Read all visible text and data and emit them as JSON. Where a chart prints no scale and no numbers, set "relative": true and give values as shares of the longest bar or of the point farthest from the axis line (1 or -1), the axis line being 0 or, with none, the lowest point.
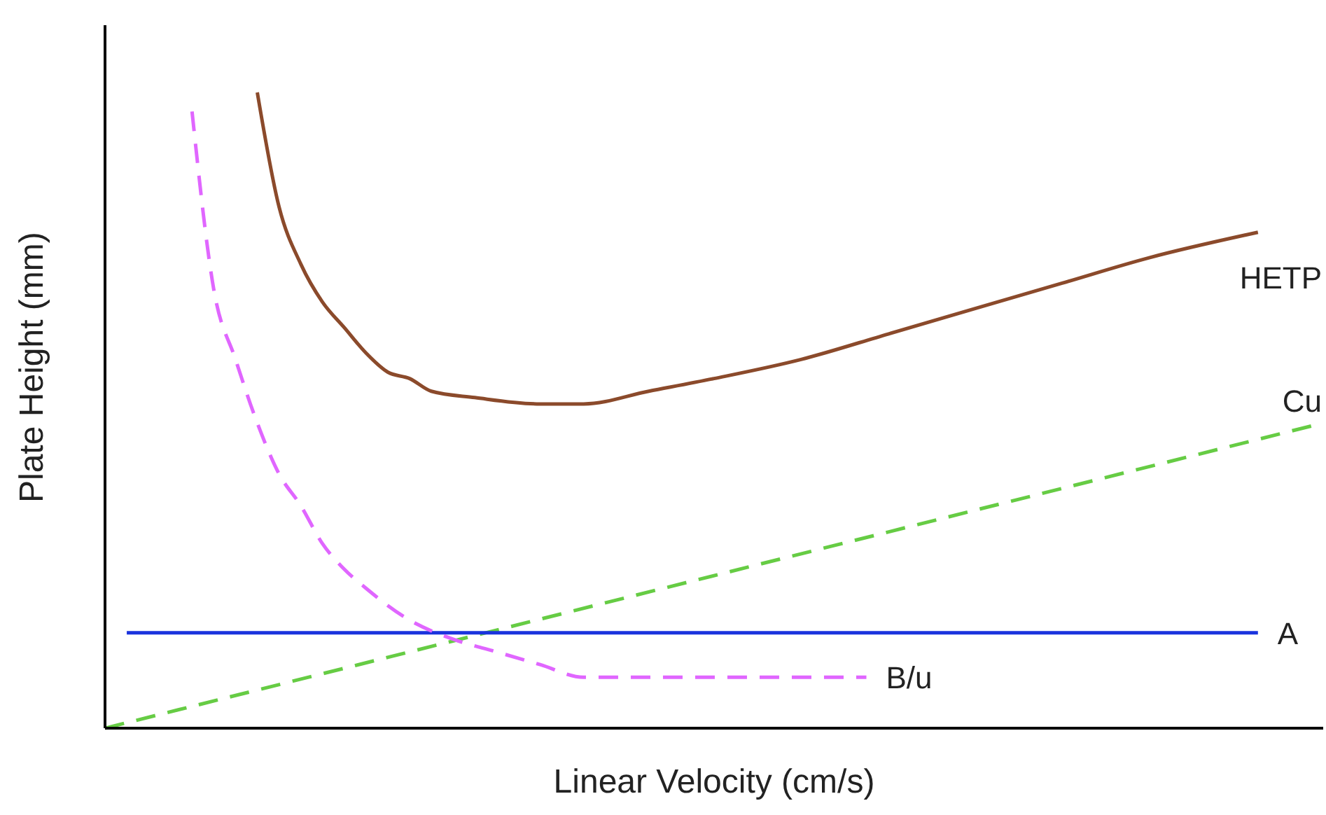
{
  "chart_data": {
    "type": "line",
    "relative": true,
    "xlabel": "Linear Velocity (cm/s)",
    "ylabel": "Plate Height (mm)",
    "marker": "none",
    "categories": [
      null,
      null,
      null,
      null,
      null,
      null,
      null,
      null,
      null,
      null,
      null,
      null,
      null,
      null,
      null,
      null,
      null,
      null,
      null,
      null,
      null,
      null,
      null,
      null,
      null,
      null,
      null,
      null,
      null,
      null,
      null,
      null,
      null,
      null,
      null,
      null,
      null,
      null,
      null,
      null,
      null,
      null,
      null,
      null,
      null,
      null,
      null,
      null,
      null,
      null,
      null,
      null,
      null,
      null,
      null,
      null,
      null
    ],
    "series": [
      {
        "name": "HETP",
        "color": "#8b4a2b",
        "line_style": "solid",
        "values": [
          null,
          null,
          null,
          null,
          null,
          null,
          null,
          1.0,
          0.82,
          0.73,
          0.67,
          0.63,
          0.59,
          0.56,
          0.55,
          0.53,
          null,
          0.52,
          null,
          null,
          0.51,
          null,
          0.51,
          null,
          null,
          0.53,
          null,
          null,
          0.55,
          null,
          null,
          null,
          0.58,
          null,
          null,
          null,
          0.62,
          null,
          null,
          null,
          0.66,
          null,
          null,
          null,
          0.7,
          null,
          null,
          null,
          0.74,
          null,
          null,
          null,
          null,
          0.78,
          null,
          null,
          null
        ]
      },
      {
        "name": "Cu",
        "color": "#66cc44",
        "line_style": "dashed",
        "values": [
          0,
          null,
          null,
          null,
          null,
          null,
          null,
          null,
          null,
          null,
          null,
          null,
          null,
          null,
          null,
          null,
          null,
          null,
          null,
          null,
          null,
          null,
          null,
          null,
          null,
          null,
          null,
          null,
          null,
          null,
          null,
          null,
          null,
          null,
          null,
          null,
          null,
          null,
          null,
          null,
          null,
          null,
          null,
          null,
          null,
          null,
          null,
          null,
          null,
          null,
          null,
          null,
          null,
          null,
          null,
          null,
          0.48
        ]
      },
      {
        "name": "A",
        "color": "#1a33dd",
        "line_style": "solid",
        "values": [
          null,
          0.15,
          null,
          null,
          null,
          null,
          null,
          null,
          null,
          null,
          null,
          null,
          null,
          null,
          null,
          null,
          null,
          null,
          null,
          null,
          null,
          null,
          null,
          null,
          null,
          null,
          null,
          null,
          null,
          null,
          null,
          null,
          null,
          null,
          null,
          null,
          null,
          null,
          null,
          null,
          null,
          null,
          null,
          null,
          null,
          null,
          null,
          null,
          null,
          null,
          null,
          null,
          null,
          0.15,
          null,
          null,
          null
        ]
      },
      {
        "name": "B/u",
        "color": "#e066ff",
        "line_style": "dashed",
        "values": [
          null,
          null,
          null,
          null,
          0.97,
          0.69,
          0.58,
          0.48,
          0.4,
          0.35,
          0.29,
          0.25,
          0.22,
          null,
          0.17,
          null,
          0.14,
          null,
          0.12,
          null,
          0.1,
          null,
          0.08,
          null,
          null,
          0.08,
          null,
          null,
          0.08,
          null,
          null,
          null,
          0.08,
          null,
          null,
          0.08,
          null,
          null,
          null,
          null,
          null,
          null,
          null,
          null,
          null,
          null,
          null,
          null,
          null,
          null,
          null,
          null,
          null,
          null,
          null,
          null,
          null
        ]
      }
    ]
  }
}
